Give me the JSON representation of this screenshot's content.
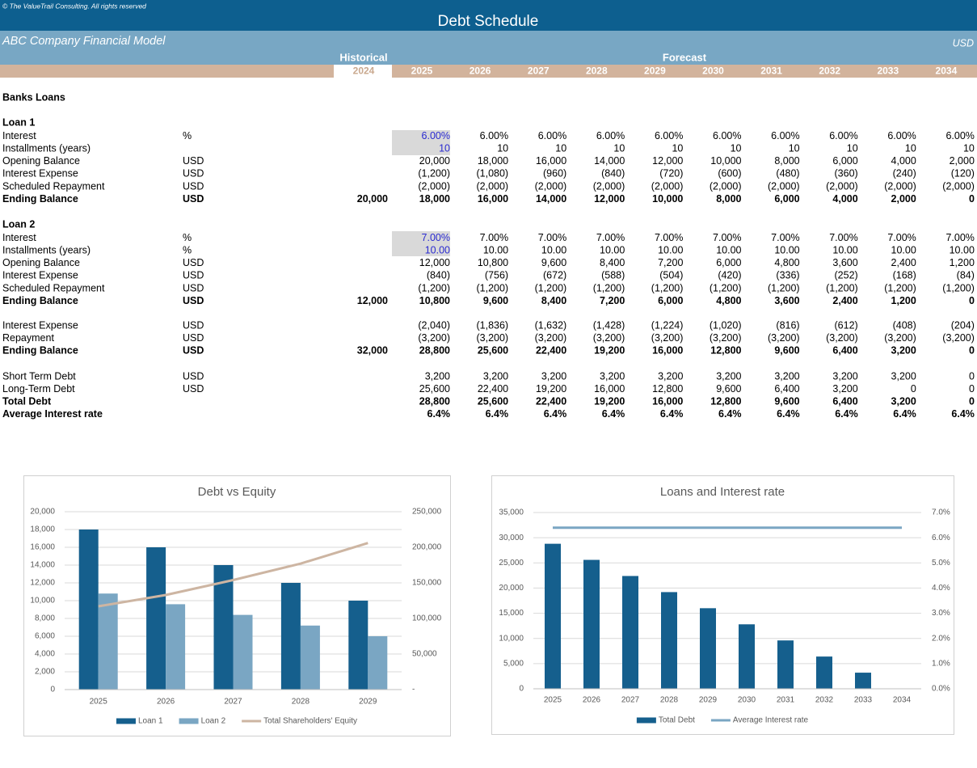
{
  "header": {
    "copyright": "© The ValueTrail Consulting. All rights reserved",
    "title": "Debt Schedule",
    "company": "ABC Company Financial Model",
    "currency": "USD",
    "historical_label": "Historical",
    "forecast_label": "Forecast",
    "years": [
      "2024",
      "2025",
      "2026",
      "2027",
      "2028",
      "2029",
      "2030",
      "2031",
      "2032",
      "2033",
      "2034"
    ]
  },
  "table": {
    "section_title": "Banks Loans",
    "blocks": [
      {
        "title": "Loan 1",
        "rows": [
          {
            "label": "Interest",
            "unit": "%",
            "input": true,
            "values": [
              "6.00%",
              "6.00%",
              "6.00%",
              "6.00%",
              "6.00%",
              "6.00%",
              "6.00%",
              "6.00%",
              "6.00%",
              "6.00%"
            ]
          },
          {
            "label": "Installments (years)",
            "input": true,
            "values": [
              "10",
              "10",
              "10",
              "10",
              "10",
              "10",
              "10",
              "10",
              "10",
              "10"
            ]
          },
          {
            "label": "Opening Balance",
            "unit": "USD",
            "values": [
              "20,000",
              "18,000",
              "16,000",
              "14,000",
              "12,000",
              "10,000",
              "8,000",
              "6,000",
              "4,000",
              "2,000"
            ]
          },
          {
            "label": "Interest Expense",
            "unit": "USD",
            "values": [
              "(1,200)",
              "(1,080)",
              "(960)",
              "(840)",
              "(720)",
              "(600)",
              "(480)",
              "(360)",
              "(240)",
              "(120)"
            ]
          },
          {
            "label": "Scheduled Repayment",
            "unit": "USD",
            "values": [
              "(2,000)",
              "(2,000)",
              "(2,000)",
              "(2,000)",
              "(2,000)",
              "(2,000)",
              "(2,000)",
              "(2,000)",
              "(2,000)",
              "(2,000)"
            ]
          },
          {
            "label": "Ending Balance",
            "unit": "USD",
            "bold": true,
            "historical": "20,000",
            "values": [
              "18,000",
              "16,000",
              "14,000",
              "12,000",
              "10,000",
              "8,000",
              "6,000",
              "4,000",
              "2,000",
              "0"
            ]
          }
        ]
      },
      {
        "title": "Loan 2",
        "rows": [
          {
            "label": "Interest",
            "unit": "%",
            "input": true,
            "values": [
              "7.00%",
              "7.00%",
              "7.00%",
              "7.00%",
              "7.00%",
              "7.00%",
              "7.00%",
              "7.00%",
              "7.00%",
              "7.00%"
            ]
          },
          {
            "label": "Installments (years)",
            "unit": "%",
            "input": true,
            "values": [
              "10.00",
              "10.00",
              "10.00",
              "10.00",
              "10.00",
              "10.00",
              "10.00",
              "10.00",
              "10.00",
              "10.00"
            ]
          },
          {
            "label": "Opening Balance",
            "unit": "USD",
            "values": [
              "12,000",
              "10,800",
              "9,600",
              "8,400",
              "7,200",
              "6,000",
              "4,800",
              "3,600",
              "2,400",
              "1,200"
            ]
          },
          {
            "label": "Interest Expense",
            "unit": "USD",
            "values": [
              "(840)",
              "(756)",
              "(672)",
              "(588)",
              "(504)",
              "(420)",
              "(336)",
              "(252)",
              "(168)",
              "(84)"
            ]
          },
          {
            "label": "Scheduled Repayment",
            "unit": "USD",
            "values": [
              "(1,200)",
              "(1,200)",
              "(1,200)",
              "(1,200)",
              "(1,200)",
              "(1,200)",
              "(1,200)",
              "(1,200)",
              "(1,200)",
              "(1,200)"
            ]
          },
          {
            "label": "Ending Balance",
            "unit": "USD",
            "bold": true,
            "historical": "12,000",
            "values": [
              "10,800",
              "9,600",
              "8,400",
              "7,200",
              "6,000",
              "4,800",
              "3,600",
              "2,400",
              "1,200",
              "0"
            ]
          }
        ]
      },
      {
        "rows": [
          {
            "label": "Interest Expense",
            "unit": "USD",
            "values": [
              "(2,040)",
              "(1,836)",
              "(1,632)",
              "(1,428)",
              "(1,224)",
              "(1,020)",
              "(816)",
              "(612)",
              "(408)",
              "(204)"
            ]
          },
          {
            "label": "Repayment",
            "unit": "USD",
            "values": [
              "(3,200)",
              "(3,200)",
              "(3,200)",
              "(3,200)",
              "(3,200)",
              "(3,200)",
              "(3,200)",
              "(3,200)",
              "(3,200)",
              "(3,200)"
            ]
          },
          {
            "label": "Ending Balance",
            "unit": "USD",
            "bold": true,
            "historical": "32,000",
            "values": [
              "28,800",
              "25,600",
              "22,400",
              "19,200",
              "16,000",
              "12,800",
              "9,600",
              "6,400",
              "3,200",
              "0"
            ]
          }
        ]
      },
      {
        "rows": [
          {
            "label": "Short Term Debt",
            "unit": "USD",
            "values": [
              "3,200",
              "3,200",
              "3,200",
              "3,200",
              "3,200",
              "3,200",
              "3,200",
              "3,200",
              "3,200",
              "0"
            ]
          },
          {
            "label": "Long-Term Debt",
            "unit": "USD",
            "values": [
              "25,600",
              "22,400",
              "19,200",
              "16,000",
              "12,800",
              "9,600",
              "6,400",
              "3,200",
              "0",
              "0"
            ]
          },
          {
            "label": "Total Debt",
            "bold": true,
            "values": [
              "28,800",
              "25,600",
              "22,400",
              "19,200",
              "16,000",
              "12,800",
              "9,600",
              "6,400",
              "3,200",
              "0"
            ]
          },
          {
            "label": "Average Interest rate",
            "bold": true,
            "values": [
              "6.4%",
              "6.4%",
              "6.4%",
              "6.4%",
              "6.4%",
              "6.4%",
              "6.4%",
              "6.4%",
              "6.4%",
              "6.4%"
            ]
          }
        ]
      }
    ]
  },
  "chart_data": [
    {
      "type": "bar",
      "title": "Debt vs Equity",
      "categories": [
        "2025",
        "2026",
        "2027",
        "2028",
        "2029"
      ],
      "series": [
        {
          "name": "Loan 1",
          "color": "#155f8d",
          "values": [
            18000,
            16000,
            14000,
            12000,
            10000
          ]
        },
        {
          "name": "Loan 2",
          "color": "#7aa6c3",
          "values": [
            10800,
            9600,
            8400,
            7200,
            6000
          ]
        },
        {
          "name": "Total Shareholders' Equity",
          "color": "#cdb5a2",
          "type": "line",
          "axis": "y2",
          "values": [
            117000,
            133000,
            154000,
            177000,
            206000
          ]
        }
      ],
      "ylim": [
        0,
        20000
      ],
      "yticks": [
        0,
        {
          "value": 2000,
          "label": "2,000"
        },
        {
          "value": 4000,
          "label": "4,000"
        },
        {
          "value": 6000,
          "label": "6,000"
        },
        {
          "value": 8000,
          "label": "8,000"
        },
        {
          "value": 10000,
          "label": "10,000"
        },
        {
          "value": 12000,
          "label": "12,000"
        },
        {
          "value": 14000,
          "label": "14,000"
        },
        {
          "value": 16000,
          "label": "16,000"
        },
        {
          "value": 18000,
          "label": "18,000"
        },
        {
          "value": 20000,
          "label": "20,000"
        }
      ],
      "y2lim": [
        0,
        250000
      ],
      "y2ticks": [
        {
          "value": 0,
          "label": "-"
        },
        {
          "value": 50000,
          "label": "50,000"
        },
        {
          "value": 100000,
          "label": "100,000"
        },
        {
          "value": 150000,
          "label": "150,000"
        },
        {
          "value": 200000,
          "label": "200,000"
        },
        {
          "value": 250000,
          "label": "250,000"
        }
      ],
      "grid": true,
      "legend": "bottom"
    },
    {
      "type": "bar",
      "title": "Loans and Interest rate",
      "categories": [
        "2025",
        "2026",
        "2027",
        "2028",
        "2029",
        "2030",
        "2031",
        "2032",
        "2033",
        "2034"
      ],
      "series": [
        {
          "name": "Total Debt",
          "color": "#155f8d",
          "values": [
            28800,
            25600,
            22400,
            19200,
            16000,
            12800,
            9600,
            6400,
            3200,
            0
          ]
        },
        {
          "name": "Average Interest rate",
          "color": "#7aa6c3",
          "type": "line",
          "axis": "y2",
          "values": [
            6.4,
            6.4,
            6.4,
            6.4,
            6.4,
            6.4,
            6.4,
            6.4,
            6.4,
            6.4
          ]
        }
      ],
      "ylim": [
        0,
        35000
      ],
      "yticks": [
        0,
        {
          "value": 5000,
          "label": "5,000"
        },
        {
          "value": 10000,
          "label": "10,000"
        },
        {
          "value": 15000,
          "label": "15,000"
        },
        {
          "value": 20000,
          "label": "20,000"
        },
        {
          "value": 25000,
          "label": "25,000"
        },
        {
          "value": 30000,
          "label": "30,000"
        },
        {
          "value": 35000,
          "label": "35,000"
        }
      ],
      "y2lim": [
        0,
        7
      ],
      "y2ticks": [
        {
          "value": 0,
          "label": "0.0%"
        },
        {
          "value": 1,
          "label": "1.0%"
        },
        {
          "value": 2,
          "label": "2.0%"
        },
        {
          "value": 3,
          "label": "3.0%"
        },
        {
          "value": 4,
          "label": "4.0%"
        },
        {
          "value": 5,
          "label": "5.0%"
        },
        {
          "value": 6,
          "label": "6.0%"
        },
        {
          "value": 7,
          "label": "7.0%"
        }
      ],
      "grid": true,
      "legend": "bottom"
    }
  ]
}
